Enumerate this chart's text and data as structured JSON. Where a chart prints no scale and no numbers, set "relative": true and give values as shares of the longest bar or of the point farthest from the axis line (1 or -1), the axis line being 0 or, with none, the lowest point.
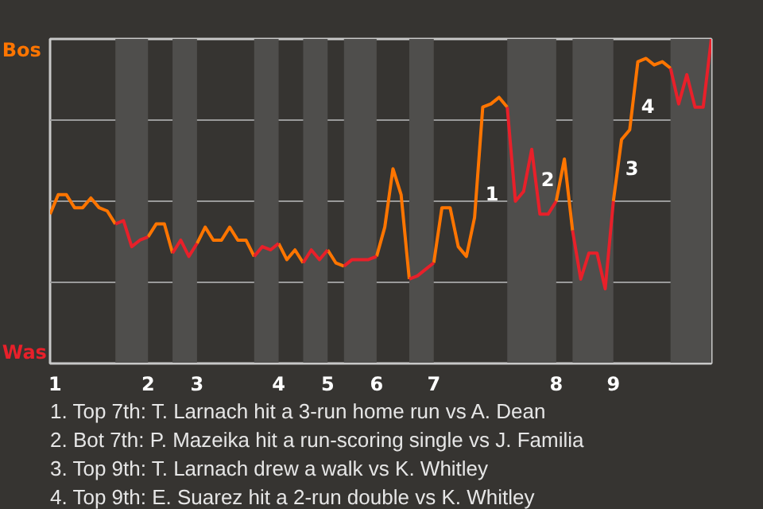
{
  "chart_data": {
    "type": "line",
    "categories": [
      "1",
      null,
      null,
      null,
      null,
      null,
      null,
      null,
      null,
      null,
      null,
      null,
      "2",
      null,
      null,
      null,
      null,
      null,
      "3",
      null,
      null,
      null,
      null,
      null,
      null,
      null,
      null,
      null,
      "4",
      null,
      null,
      null,
      null,
      null,
      "5",
      null,
      null,
      null,
      null,
      null,
      "6",
      null,
      null,
      null,
      null,
      null,
      null,
      "7",
      null,
      null,
      null,
      null,
      null,
      null,
      null,
      null,
      null,
      null,
      null,
      null,
      null,
      null,
      "8",
      null,
      null,
      null,
      null,
      null,
      null,
      "9",
      null,
      null,
      null,
      null,
      null,
      null,
      null,
      null,
      null,
      null,
      null,
      null
    ],
    "series": [
      {
        "name": "Bos",
        "color": "#ff7500",
        "values": [
          0.46,
          0.52,
          0.52,
          0.48,
          0.48,
          0.51,
          0.48,
          0.47,
          0.43,
          null,
          null,
          null,
          0.39,
          0.43,
          0.43,
          0.34,
          null,
          null,
          0.37,
          0.42,
          0.38,
          0.38,
          0.42,
          0.38,
          0.38,
          0.33,
          null,
          null,
          0.37,
          0.32,
          0.35,
          0.31,
          null,
          null,
          0.35,
          0.31,
          0.3,
          null,
          null,
          null,
          0.33,
          0.42,
          0.6,
          0.52,
          0.26,
          null,
          null,
          0.31,
          0.48,
          0.48,
          0.36,
          0.33,
          0.45,
          0.79,
          0.8,
          0.82,
          0.79,
          null,
          null,
          null,
          null,
          null,
          0.5,
          0.63,
          0.41,
          null,
          null,
          null,
          null,
          0.5,
          0.69,
          0.72,
          0.93,
          0.94,
          0.92,
          0.93,
          0.91,
          null,
          null,
          null,
          null,
          null
        ]
      },
      {
        "name": "Was",
        "color": "#e8202a",
        "values": [
          null,
          null,
          null,
          null,
          null,
          null,
          null,
          null,
          0.43,
          0.44,
          0.36,
          0.38,
          0.39,
          null,
          null,
          0.34,
          0.38,
          0.33,
          0.37,
          null,
          null,
          null,
          null,
          null,
          null,
          0.33,
          0.36,
          0.35,
          0.37,
          null,
          null,
          0.31,
          0.35,
          0.32,
          0.35,
          null,
          0.3,
          0.32,
          0.32,
          0.32,
          0.33,
          null,
          null,
          null,
          0.26,
          0.27,
          0.29,
          0.31,
          null,
          null,
          null,
          null,
          null,
          null,
          null,
          null,
          0.79,
          0.5,
          0.53,
          0.66,
          0.46,
          0.46,
          0.5,
          null,
          0.41,
          0.26,
          0.34,
          0.34,
          0.23,
          0.5,
          null,
          null,
          null,
          null,
          null,
          null,
          0.91,
          0.8,
          0.89,
          0.79,
          0.79,
          1.0
        ]
      }
    ],
    "relative": true,
    "grid": "y",
    "line_style": "solid",
    "annotations": [
      "1",
      "2",
      "3",
      "4",
      "1. Top 7th: T. Larnach hit a 3-run home run vs A. Dean",
      "2. Bot 7th: P. Mazeika hit a run-scoring single vs J. Familia",
      "3. Top 9th: T. Larnach drew a walk vs K. Whitley",
      "4. Top 9th: E. Suarez hit a 2-run double vs K. Whitley"
    ]
  }
}
